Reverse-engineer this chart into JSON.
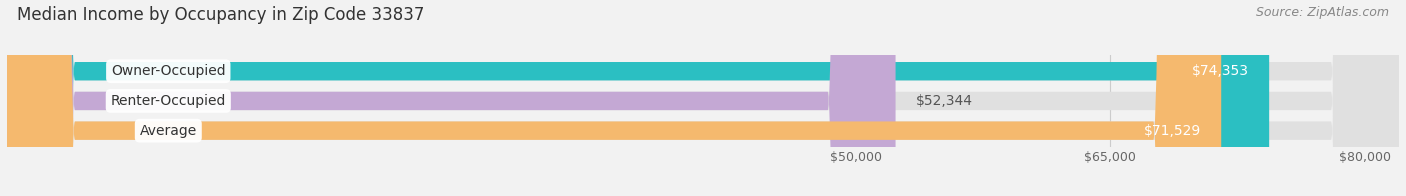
{
  "title": "Median Income by Occupancy in Zip Code 33837",
  "source": "Source: ZipAtlas.com",
  "categories": [
    "Owner-Occupied",
    "Renter-Occupied",
    "Average"
  ],
  "values": [
    74353,
    52344,
    71529
  ],
  "bar_colors": [
    "#2bbfc2",
    "#c4a8d4",
    "#f5b96e"
  ],
  "value_labels": [
    "$74,353",
    "$52,344",
    "$71,529"
  ],
  "value_inside": [
    true,
    false,
    true
  ],
  "x_min": 0,
  "x_max": 82000,
  "x_ticks": [
    50000,
    65000,
    80000
  ],
  "x_tick_labels": [
    "$50,000",
    "$65,000",
    "$80,000"
  ],
  "bar_height": 0.62,
  "background_color": "#f2f2f2",
  "bar_bg_color": "#e0e0e0",
  "title_fontsize": 12,
  "source_fontsize": 9,
  "label_fontsize": 10,
  "value_fontsize": 10
}
